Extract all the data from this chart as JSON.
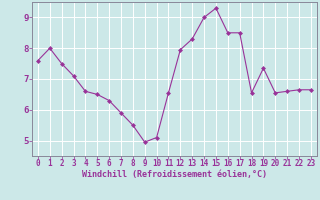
{
  "x": [
    0,
    1,
    2,
    3,
    4,
    5,
    6,
    7,
    8,
    9,
    10,
    11,
    12,
    13,
    14,
    15,
    16,
    17,
    18,
    19,
    20,
    21,
    22,
    23
  ],
  "y": [
    7.6,
    8.0,
    7.5,
    7.1,
    6.6,
    6.5,
    6.3,
    5.9,
    5.5,
    4.95,
    5.1,
    6.55,
    7.95,
    8.3,
    9.0,
    9.3,
    8.5,
    8.5,
    6.55,
    7.35,
    6.55,
    6.6,
    6.65,
    6.65
  ],
  "line_color": "#993399",
  "marker": "D",
  "marker_size": 2.0,
  "bg_color": "#cce8e8",
  "grid_color": "#b0d8d8",
  "xlabel": "Windchill (Refroidissement éolien,°C)",
  "xlabel_color": "#993399",
  "tick_color": "#993399",
  "spine_color": "#888899",
  "ylim": [
    4.5,
    9.5
  ],
  "xlim": [
    -0.5,
    23.5
  ],
  "yticks": [
    5,
    6,
    7,
    8,
    9
  ],
  "xticks": [
    0,
    1,
    2,
    3,
    4,
    5,
    6,
    7,
    8,
    9,
    10,
    11,
    12,
    13,
    14,
    15,
    16,
    17,
    18,
    19,
    20,
    21,
    22,
    23
  ],
  "tick_fontsize": 5.5,
  "xlabel_fontsize": 6.0
}
